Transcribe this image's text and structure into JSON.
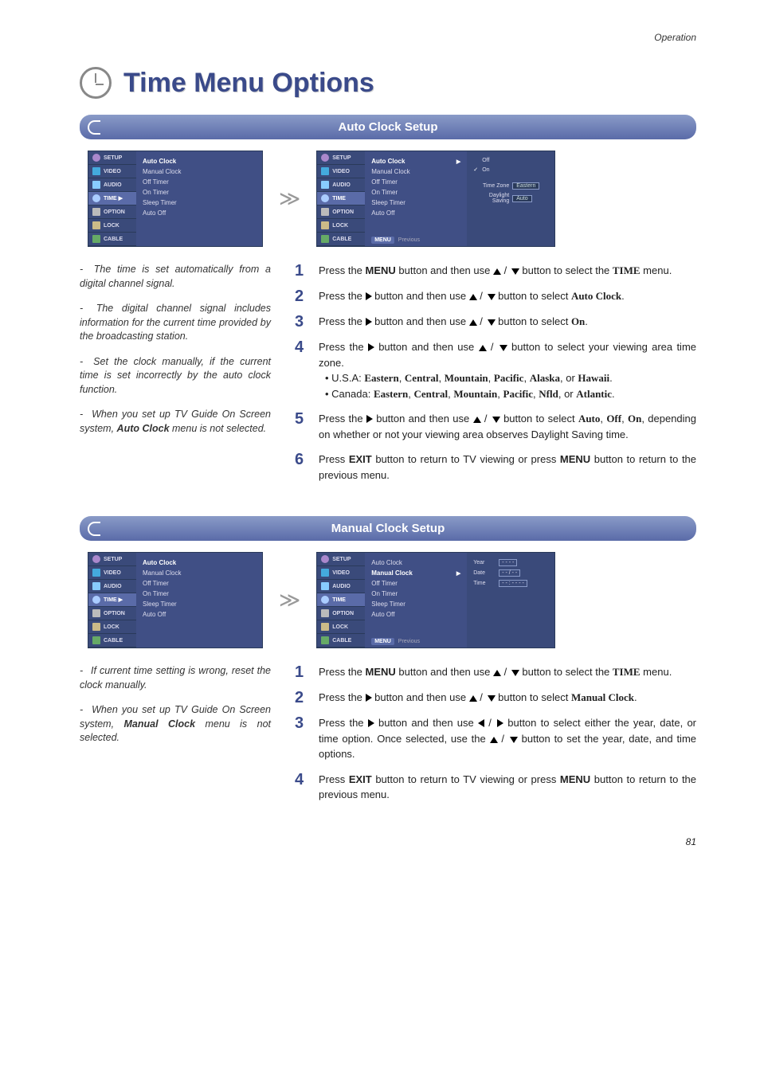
{
  "header": {
    "section": "Operation",
    "page_num": "81"
  },
  "title": "Time Menu Options",
  "tv_tabs": [
    "SETUP",
    "VIDEO",
    "AUDIO",
    "TIME",
    "OPTION",
    "LOCK",
    "CABLE"
  ],
  "tv_tabs_active_left": "TIME ▶",
  "tv_items": [
    "Auto Clock",
    "Manual Clock",
    "Off Timer",
    "On Timer",
    "Sleep Timer",
    "Auto Off"
  ],
  "auto": {
    "section_title": "Auto Clock Setup",
    "right_panel": {
      "opts": [
        "Off",
        "On"
      ],
      "checked": "On",
      "fields": [
        {
          "label": "Time Zone",
          "value": "Eastern"
        },
        {
          "label": "Daylight Saving",
          "value": "Auto"
        }
      ]
    },
    "footer_btn": "MENU",
    "footer_txt": "Previous",
    "left_notes": [
      "The time is set automatically from a digital channel signal.",
      "The digital channel signal includes information for the current time provided by the broadcasting station.",
      "Set the clock manually, if the current time is set incorrectly by the auto clock function.",
      "When you set up TV Guide On Screen system, <b>Auto Clock</b> menu is not selected."
    ],
    "steps": [
      {
        "n": "1",
        "html": "Press the <b>MENU</b> button and then use <span class='updown'><span class='tri up'></span> / <span class='tri down'></span></span> button to select the <b class='serif'>TIME</b> menu."
      },
      {
        "n": "2",
        "html": "Press the <span class='tri right'></span> button and then use <span class='updown'><span class='tri up'></span> / <span class='tri down'></span></span> button to select <b class='serif'>Auto Clock</b>."
      },
      {
        "n": "3",
        "html": "Press the <span class='tri right'></span> button and then use <span class='updown'><span class='tri up'></span> / <span class='tri down'></span></span> button to select <b class='serif'>On</b>."
      },
      {
        "n": "4",
        "html": "Press the <span class='tri right'></span> button and then use <span class='updown'><span class='tri up'></span> / <span class='tri down'></span></span> button to select your viewing area time zone.<br><span class='bullet'>• U.S.A: <b class='serif'>Eastern</b>, <b class='serif'>Central</b>, <b class='serif'>Mountain</b>, <b class='serif'>Pacific</b>, <b class='serif'>Alaska</b>, or <b class='serif'>Hawaii</b>.</span><br><span class='bullet'>• Canada: <b class='serif'>Eastern</b>, <b class='serif'>Central</b>, <b class='serif'>Mountain</b>, <b class='serif'>Pacific</b>, <b class='serif'>Nfld</b>, or <b class='serif'>Atlantic</b>.</span>"
      },
      {
        "n": "5",
        "html": "Press the <span class='tri right'></span> button and then use <span class='updown'><span class='tri up'></span> / <span class='tri down'></span></span> button to select <b class='serif'>Auto</b>, <b class='serif'>Off</b>, <b class='serif'>On</b>, depending on whether or not your viewing area observes Daylight Saving time."
      },
      {
        "n": "6",
        "html": "Press <b>EXIT</b> button to return to TV viewing or press <b>MENU</b> button to return to the previous menu."
      }
    ]
  },
  "manual": {
    "section_title": "Manual Clock Setup",
    "right_panel": {
      "fields": [
        {
          "label": "Year",
          "value": "- - - -"
        },
        {
          "label": "Date",
          "value": "- -  /  - -"
        },
        {
          "label": "Time",
          "value": "- -  :  - -    - -"
        }
      ]
    },
    "left_notes": [
      "If current time setting is wrong, reset the clock manually.",
      "When you set up TV Guide On Screen system, <b>Manual Clock</b> menu is not selected."
    ],
    "steps": [
      {
        "n": "1",
        "html": "Press the <b>MENU</b> button and then use <span class='updown'><span class='tri up'></span> / <span class='tri down'></span></span> button to select the <b class='serif'>TIME</b> menu."
      },
      {
        "n": "2",
        "html": "Press the <span class='tri right'></span> button and then use <span class='updown'><span class='tri up'></span> / <span class='tri down'></span></span> button to select <b class='serif'>Manual Clock</b>."
      },
      {
        "n": "3",
        "html": "Press the <span class='tri right'></span> button and then use <span class='updown'><span class='tri left'></span> / <span class='tri right'></span></span> button to select either the year, date, or time option. Once selected, use the <span class='updown'><span class='tri up'></span> / <span class='tri down'></span></span> button to set the year, date, and time options."
      },
      {
        "n": "4",
        "html": "Press <b>EXIT</b> button to return to TV viewing or press <b>MENU</b> button to return to the previous menu."
      }
    ]
  },
  "colors": {
    "accent": "#3a4a8a",
    "menu_bg": "#3a4a7a",
    "menu_hl": "#5a6ba8"
  }
}
